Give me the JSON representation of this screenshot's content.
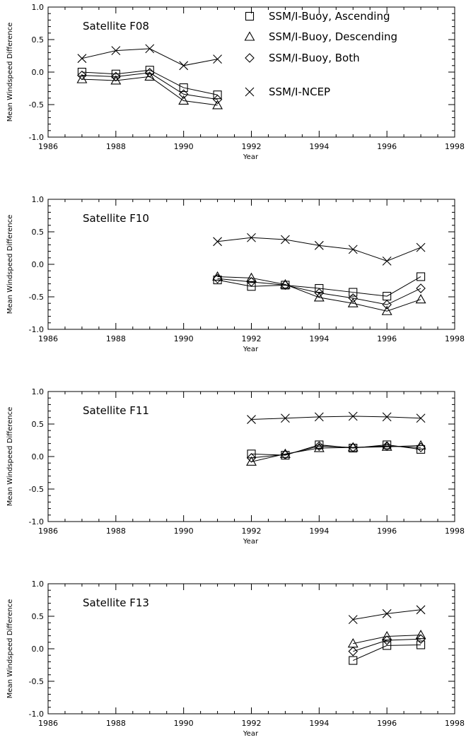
{
  "chart_data": [
    {
      "type": "line",
      "title": "Satellite F08",
      "xlabel": "Year",
      "ylabel": "Mean Windspeed Difference",
      "xlim": [
        1986,
        1998
      ],
      "ylim": [
        -1.0,
        1.0
      ],
      "xticks": [
        "1986",
        "1988",
        "1990",
        "1992",
        "1994",
        "1996",
        "1998"
      ],
      "yticks": [
        "-1.0",
        "-0.5",
        "0.0",
        "0.5",
        "1.0"
      ],
      "x": [
        1987,
        1988,
        1989,
        1990,
        1991
      ],
      "series": [
        {
          "name": "SSM/I-Buoy, Ascending",
          "marker": "square",
          "values": [
            0.0,
            -0.03,
            0.03,
            -0.24,
            -0.35
          ]
        },
        {
          "name": "SSM/I-Buoy, Descending",
          "marker": "triangle",
          "values": [
            -0.11,
            -0.13,
            -0.07,
            -0.44,
            -0.51
          ]
        },
        {
          "name": "SSM/I-Buoy, Both",
          "marker": "diamond",
          "values": [
            -0.05,
            -0.07,
            -0.01,
            -0.34,
            -0.42
          ]
        },
        {
          "name": "SSM/I-NCEP",
          "marker": "x",
          "values": [
            0.21,
            0.33,
            0.36,
            0.1,
            0.2
          ]
        }
      ]
    },
    {
      "type": "line",
      "title": "Satellite F10",
      "xlabel": "Year",
      "ylabel": "Mean Windspeed Difference",
      "xlim": [
        1986,
        1998
      ],
      "ylim": [
        -1.0,
        1.0
      ],
      "xticks": [
        "1986",
        "1988",
        "1990",
        "1992",
        "1994",
        "1996",
        "1998"
      ],
      "yticks": [
        "-1.0",
        "-0.5",
        "0.0",
        "0.5",
        "1.0"
      ],
      "x": [
        1991,
        1992,
        1993,
        1994,
        1995,
        1996,
        1997
      ],
      "series": [
        {
          "name": "SSM/I-Buoy, Ascending",
          "marker": "square",
          "values": [
            -0.24,
            -0.34,
            -0.32,
            -0.37,
            -0.43,
            -0.49,
            -0.19
          ]
        },
        {
          "name": "SSM/I-Buoy, Descending",
          "marker": "triangle",
          "values": [
            -0.19,
            -0.21,
            -0.31,
            -0.51,
            -0.6,
            -0.72,
            -0.54
          ]
        },
        {
          "name": "SSM/I-Buoy, Both",
          "marker": "diamond",
          "values": [
            -0.22,
            -0.27,
            -0.32,
            -0.44,
            -0.52,
            -0.62,
            -0.37
          ]
        },
        {
          "name": "SSM/I-NCEP",
          "marker": "x",
          "values": [
            0.35,
            0.41,
            0.38,
            0.29,
            0.23,
            0.05,
            0.26
          ]
        }
      ]
    },
    {
      "type": "line",
      "title": "Satellite F11",
      "xlabel": "Year",
      "ylabel": "Mean Windspeed Difference",
      "xlim": [
        1986,
        1998
      ],
      "ylim": [
        -1.0,
        1.0
      ],
      "xticks": [
        "1986",
        "1988",
        "1990",
        "1992",
        "1994",
        "1996",
        "1998"
      ],
      "yticks": [
        "-1.0",
        "-0.5",
        "0.0",
        "0.5",
        "1.0"
      ],
      "x": [
        1992,
        1993,
        1994,
        1995,
        1996,
        1997
      ],
      "series": [
        {
          "name": "SSM/I-Buoy, Ascending",
          "marker": "square",
          "values": [
            0.04,
            0.02,
            0.18,
            0.13,
            0.18,
            0.11
          ]
        },
        {
          "name": "SSM/I-Buoy, Descending",
          "marker": "triangle",
          "values": [
            -0.08,
            0.04,
            0.13,
            0.14,
            0.15,
            0.17
          ]
        },
        {
          "name": "SSM/I-Buoy, Both",
          "marker": "diamond",
          "values": [
            -0.02,
            0.03,
            0.16,
            0.14,
            0.16,
            0.14
          ]
        },
        {
          "name": "SSM/I-NCEP",
          "marker": "x",
          "values": [
            0.57,
            0.59,
            0.61,
            0.62,
            0.61,
            0.59
          ]
        }
      ]
    },
    {
      "type": "line",
      "title": "Satellite F13",
      "xlabel": "Year",
      "ylabel": "Mean Windspeed Difference",
      "xlim": [
        1986,
        1998
      ],
      "ylim": [
        -1.0,
        1.0
      ],
      "xticks": [
        "1986",
        "1988",
        "1990",
        "1992",
        "1994",
        "1996",
        "1998"
      ],
      "yticks": [
        "-1.0",
        "-0.5",
        "0.0",
        "0.5",
        "1.0"
      ],
      "x": [
        1995,
        1996,
        1997
      ],
      "series": [
        {
          "name": "SSM/I-Buoy, Ascending",
          "marker": "square",
          "values": [
            -0.18,
            0.05,
            0.06
          ]
        },
        {
          "name": "SSM/I-Buoy, Descending",
          "marker": "triangle",
          "values": [
            0.08,
            0.19,
            0.21
          ]
        },
        {
          "name": "SSM/I-Buoy, Both",
          "marker": "diamond",
          "values": [
            -0.04,
            0.13,
            0.15
          ]
        },
        {
          "name": "SSM/I-NCEP",
          "marker": "x",
          "values": [
            0.45,
            0.54,
            0.6
          ]
        }
      ]
    }
  ],
  "legend": {
    "placement": "top-right of first panel",
    "items": [
      {
        "marker": "square",
        "label": "SSM/I-Buoy, Ascending"
      },
      {
        "marker": "triangle",
        "label": "SSM/I-Buoy, Descending"
      },
      {
        "marker": "diamond",
        "label": "SSM/I-Buoy, Both"
      },
      {
        "marker": "x",
        "label": "SSM/I-NCEP"
      }
    ]
  },
  "colors": {
    "ink": "#000000",
    "background": "#ffffff"
  }
}
